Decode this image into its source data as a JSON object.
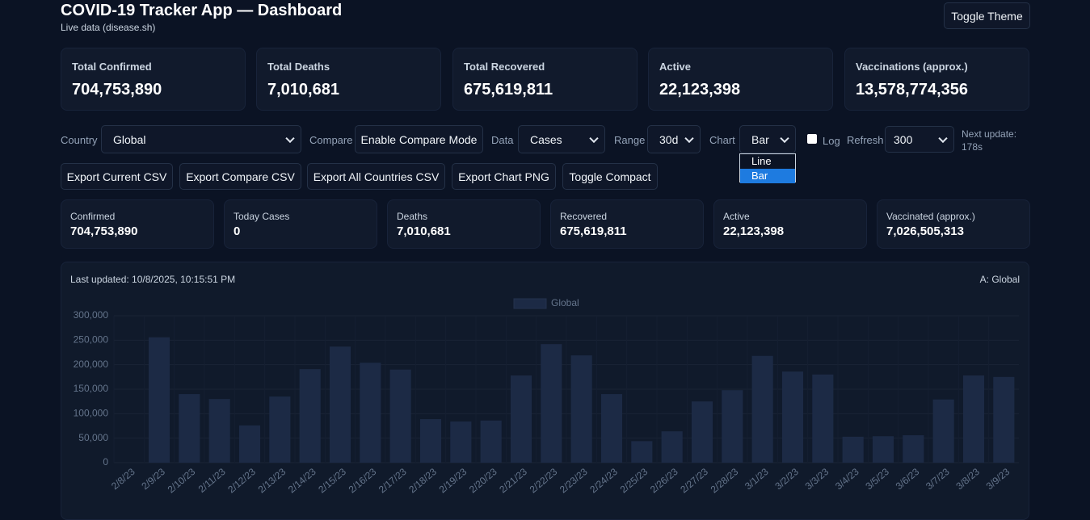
{
  "header": {
    "title": "COVID-19 Tracker App — Dashboard",
    "subtitle": "Live data (disease.sh)",
    "theme_button": "Toggle Theme"
  },
  "summary_cards": [
    {
      "label": "Total Confirmed",
      "value": "704,753,890"
    },
    {
      "label": "Total Deaths",
      "value": "7,010,681"
    },
    {
      "label": "Total Recovered",
      "value": "675,619,811"
    },
    {
      "label": "Active",
      "value": "22,123,398"
    },
    {
      "label": "Vaccinations (approx.)",
      "value": "13,578,774,356"
    }
  ],
  "controls": {
    "country_label": "Country",
    "country": "Global",
    "compare_label": "Compare",
    "compare_button": "Enable Compare Mode",
    "data_label": "Data",
    "data": "Cases",
    "range_label": "Range",
    "range": "30d",
    "chart_label": "Chart",
    "chart": "Bar",
    "chart_options": [
      "Line",
      "Bar"
    ],
    "log_label": "Log",
    "refresh_label": "Refresh",
    "refresh": "300",
    "next_update": [
      "Next update:",
      "178s"
    ]
  },
  "buttons": [
    "Export Current CSV",
    "Export Compare CSV",
    "Export All Countries CSV",
    "Export Chart PNG",
    "Toggle Compact"
  ],
  "stats": [
    {
      "label": "Confirmed",
      "value": "704,753,890"
    },
    {
      "label": "Today Cases",
      "value": "0"
    },
    {
      "label": "Deaths",
      "value": "7,010,681"
    },
    {
      "label": "Recovered",
      "value": "675,619,811"
    },
    {
      "label": "Active",
      "value": "22,123,398"
    },
    {
      "label": "Vaccinated (approx.)",
      "value": "7,026,505,313"
    }
  ],
  "chart_panel": {
    "last_updated": "Last updated: 10/8/2025, 10:15:51 PM",
    "series_tag": "A: Global"
  },
  "chart_data": {
    "type": "bar",
    "categories": [
      "2/8/23",
      "2/9/23",
      "2/10/23",
      "2/11/23",
      "2/12/23",
      "2/13/23",
      "2/14/23",
      "2/15/23",
      "2/16/23",
      "2/17/23",
      "2/18/23",
      "2/19/23",
      "2/20/23",
      "2/21/23",
      "2/22/23",
      "2/23/23",
      "2/24/23",
      "2/25/23",
      "2/26/23",
      "2/27/23",
      "2/28/23",
      "3/1/23",
      "3/2/23",
      "3/3/23",
      "3/4/23",
      "3/5/23",
      "3/6/23",
      "3/7/23",
      "3/8/23",
      "3/9/23"
    ],
    "series": [
      {
        "name": "Global",
        "color": "#1c2a45",
        "values": [
          0,
          256000,
          140000,
          130000,
          76000,
          135000,
          191000,
          237000,
          204000,
          190000,
          89000,
          84000,
          86000,
          178000,
          242000,
          219000,
          140000,
          44000,
          64000,
          125000,
          148000,
          218000,
          186000,
          180000,
          53000,
          54000,
          56000,
          129000,
          178000,
          175000
        ]
      }
    ],
    "ylim": [
      0,
      300000
    ],
    "yticks": [
      0,
      {
        "value": 50000,
        "label": "50,000"
      },
      {
        "value": 100000,
        "label": "100,000"
      },
      {
        "value": 150000,
        "label": "150,000"
      },
      {
        "value": 200000,
        "label": "200,000"
      },
      {
        "value": 250000,
        "label": "250,000"
      },
      {
        "value": 300000,
        "label": "300,000"
      }
    ],
    "grid": true
  }
}
